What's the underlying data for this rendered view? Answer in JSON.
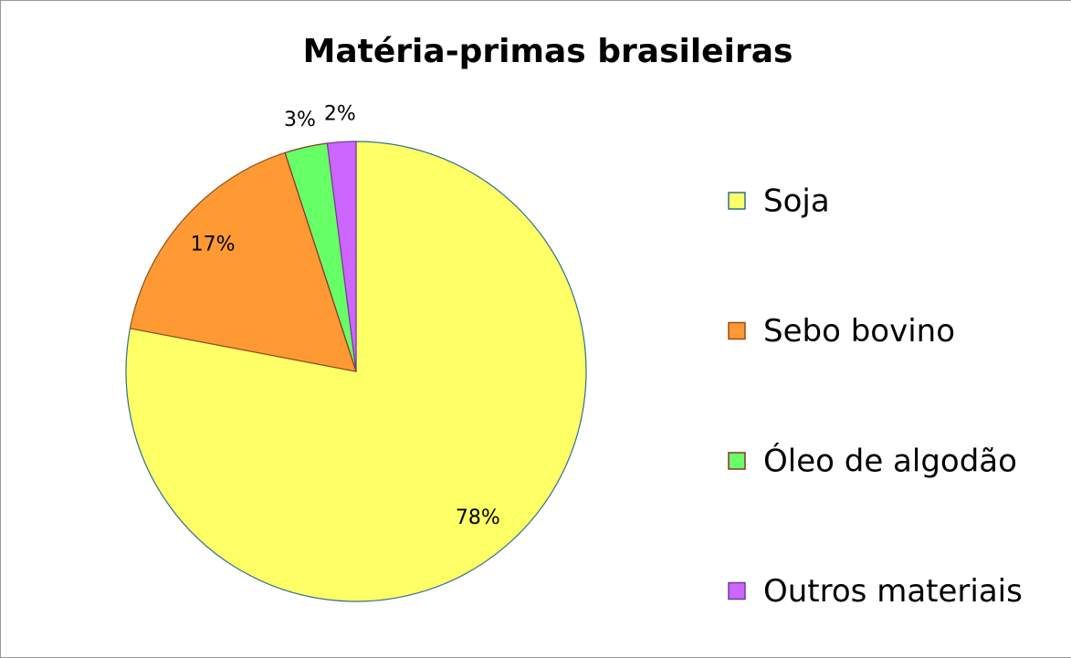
{
  "chart_data": {
    "type": "pie",
    "title": "Matéria-primas brasileiras",
    "categories": [
      "Soja",
      "Sebo bovino",
      "Óleo de algodão",
      "Outros materiais"
    ],
    "values": [
      78,
      17,
      3,
      2
    ],
    "value_labels": [
      "78%",
      "17%",
      "3%",
      "2%"
    ],
    "colors": [
      "#ffff66",
      "#ff9933",
      "#66ff66",
      "#cc66ff"
    ],
    "legend": "right"
  }
}
